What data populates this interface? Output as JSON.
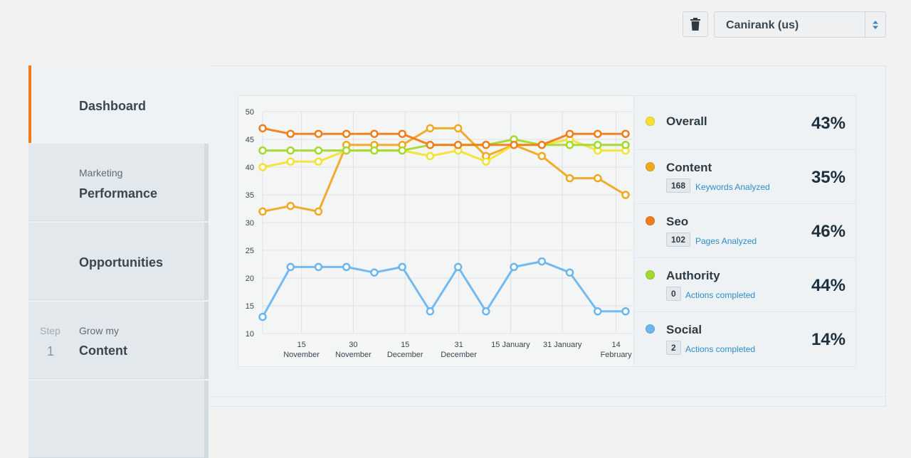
{
  "header": {
    "trash_icon": "trash-icon",
    "project_select": {
      "selected": "Canirank (us)",
      "arrow_icon": "up-down-arrows-icon"
    }
  },
  "sidebar": {
    "items": [
      {
        "sub": "",
        "label": "Dashboard",
        "active": true
      },
      {
        "sub": "Marketing",
        "label": "Performance",
        "active": false
      },
      {
        "sub": "",
        "label": "Opportunities",
        "active": false
      },
      {
        "step_label": "Step",
        "step_num": "1",
        "sub": "Grow my",
        "label": "Content",
        "active": false
      }
    ]
  },
  "chart_data": {
    "type": "line",
    "ylim": [
      10,
      50
    ],
    "yticks": [
      "10",
      "15",
      "20",
      "25",
      "30",
      "35",
      "40",
      "45",
      "50"
    ],
    "xtick_labels": [
      {
        "line1": "15",
        "line2": "November"
      },
      {
        "line1": "30",
        "line2": "November"
      },
      {
        "line1": "15",
        "line2": "December"
      },
      {
        "line1": "31",
        "line2": "December"
      },
      {
        "line1": "15 January",
        "line2": ""
      },
      {
        "line1": "31 January",
        "line2": ""
      },
      {
        "line1": "14",
        "line2": "February"
      }
    ],
    "series": [
      {
        "name": "Social",
        "color": "#6cb6f0",
        "values": [
          13,
          22,
          22,
          22,
          21,
          22,
          14,
          22,
          14,
          22,
          23,
          21,
          14,
          14
        ]
      },
      {
        "name": "Content",
        "color": "#f0a820",
        "values": [
          32,
          33,
          32,
          44,
          44,
          44,
          47,
          47,
          42,
          44,
          42,
          38,
          38,
          35
        ]
      },
      {
        "name": "Overall",
        "color": "#f5e132",
        "values": [
          40,
          41,
          41,
          43,
          43,
          43,
          42,
          43,
          41,
          44,
          44,
          45,
          43,
          43
        ]
      },
      {
        "name": "Authority",
        "color": "#a3d92b",
        "values": [
          43,
          43,
          43,
          43,
          43,
          43,
          44,
          44,
          44,
          45,
          44,
          44,
          44,
          44
        ]
      },
      {
        "name": "Seo",
        "color": "#f07d1a",
        "values": [
          47,
          46,
          46,
          46,
          46,
          46,
          44,
          44,
          44,
          44,
          44,
          46,
          46,
          46
        ]
      }
    ]
  },
  "legend": [
    {
      "name": "Overall",
      "color": "#f5e132",
      "percent": "43%"
    },
    {
      "name": "Content",
      "color": "#f0a820",
      "percent": "35%",
      "badge": "168",
      "badge_text": "Keywords Analyzed"
    },
    {
      "name": "Seo",
      "color": "#f07d1a",
      "percent": "46%",
      "badge": "102",
      "badge_text": "Pages Analyzed"
    },
    {
      "name": "Authority",
      "color": "#a3d92b",
      "percent": "44%",
      "badge": "0",
      "badge_text": "Actions completed"
    },
    {
      "name": "Social",
      "color": "#6cb6f0",
      "percent": "14%",
      "badge": "2",
      "badge_text": "Actions completed"
    }
  ]
}
